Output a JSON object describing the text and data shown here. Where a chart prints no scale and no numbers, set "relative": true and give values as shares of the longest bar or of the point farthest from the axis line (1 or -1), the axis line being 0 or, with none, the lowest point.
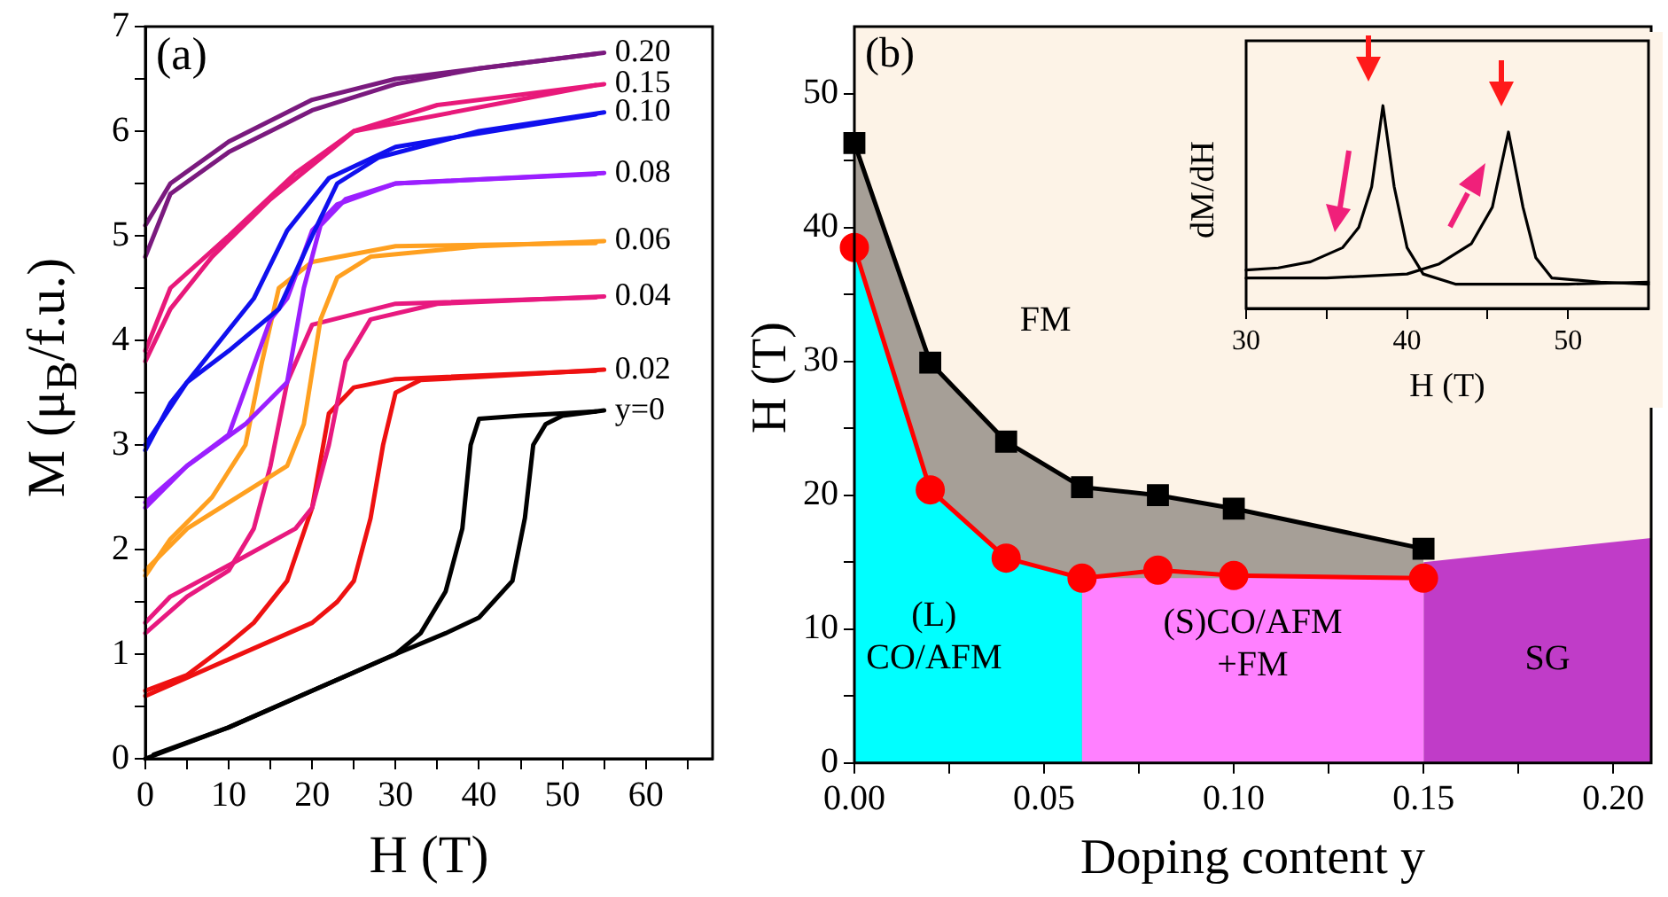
{
  "chart_data": [
    {
      "type": "line",
      "xlabel": "H (T)",
      "ylabel": "M (μ$_{B}$/f.u.)",
      "annotations": [
        "(a)"
      ],
      "xlim": [
        0,
        68
      ],
      "ylim": [
        0,
        7
      ],
      "xticks": [
        0,
        {
          "value": 5,
          "label": null
        },
        10,
        {
          "value": 15,
          "label": null
        },
        20,
        {
          "value": 25,
          "label": null
        },
        30,
        {
          "value": 35,
          "label": null
        },
        40,
        {
          "value": 45,
          "label": null
        },
        50,
        {
          "value": 55,
          "label": null
        },
        60,
        {
          "value": 65,
          "label": null
        }
      ],
      "yticks": [
        0,
        {
          "value": 0.5,
          "label": null
        },
        1,
        {
          "value": 1.5,
          "label": null
        },
        2,
        {
          "value": 2.5,
          "label": null
        },
        3,
        {
          "value": 3.5,
          "label": null
        },
        4,
        {
          "value": 4.5,
          "label": null
        },
        5,
        {
          "value": 5.5,
          "label": null
        },
        6,
        {
          "value": 6.5,
          "label": null
        },
        7
      ],
      "series": [
        {
          "name": "y=0",
          "color": "#000000",
          "x": [
            0,
            10,
            20,
            30,
            36,
            40,
            44,
            45.5,
            46.5,
            48,
            50,
            55
          ],
          "values": [
            0,
            0.3,
            0.65,
            1.0,
            1.2,
            1.35,
            1.7,
            2.3,
            3.0,
            3.2,
            3.28,
            3.33
          ]
        },
        {
          "color": "#000000",
          "x": [
            54,
            45,
            40,
            39,
            38,
            36,
            33,
            30,
            20,
            10,
            1
          ],
          "values": [
            3.32,
            3.28,
            3.25,
            3.0,
            2.2,
            1.6,
            1.2,
            1.0,
            0.65,
            0.3,
            0.04
          ]
        },
        {
          "name": "0.02",
          "color": "#ee1111",
          "x": [
            0,
            10,
            20,
            23,
            25,
            27,
            28.5,
            30,
            33,
            40,
            55
          ],
          "values": [
            0.6,
            0.95,
            1.3,
            1.5,
            1.7,
            2.3,
            3.0,
            3.5,
            3.62,
            3.65,
            3.72
          ]
        },
        {
          "color": "#ee1111",
          "x": [
            54,
            30,
            25,
            22,
            20,
            17,
            13,
            10,
            5,
            0
          ],
          "values": [
            3.71,
            3.63,
            3.55,
            3.3,
            2.4,
            1.7,
            1.3,
            1.1,
            0.8,
            0.65
          ]
        },
        {
          "name": "0.04",
          "color": "#e8197f",
          "x": [
            0,
            3,
            10,
            18,
            20,
            22,
            24,
            27,
            35,
            55
          ],
          "values": [
            1.3,
            1.55,
            1.85,
            2.2,
            2.4,
            3.0,
            3.8,
            4.2,
            4.35,
            4.42
          ]
        },
        {
          "color": "#e8197f",
          "x": [
            54,
            30,
            20,
            17,
            15,
            13,
            10,
            5,
            0
          ],
          "values": [
            4.41,
            4.35,
            4.15,
            3.6,
            2.8,
            2.2,
            1.8,
            1.55,
            1.2
          ]
        },
        {
          "name": "0.06",
          "color": "#ffa020",
          "x": [
            0,
            5,
            12,
            17,
            19,
            21,
            23,
            27,
            40,
            55
          ],
          "values": [
            1.8,
            2.2,
            2.55,
            2.8,
            3.2,
            4.2,
            4.6,
            4.8,
            4.9,
            4.95
          ]
        },
        {
          "color": "#ffa020",
          "x": [
            54,
            30,
            20,
            16,
            14,
            12,
            8,
            3,
            0
          ],
          "values": [
            4.93,
            4.9,
            4.75,
            4.5,
            3.8,
            3.0,
            2.5,
            2.1,
            1.75
          ]
        },
        {
          "name": "0.08",
          "color": "#9b1fff",
          "x": [
            0,
            5,
            12,
            17,
            19,
            21,
            24,
            30,
            55
          ],
          "values": [
            2.4,
            2.8,
            3.2,
            3.6,
            4.5,
            5.1,
            5.35,
            5.5,
            5.6
          ]
        },
        {
          "color": "#9b1fff",
          "x": [
            54,
            30,
            23,
            20,
            17,
            15,
            10,
            5,
            0
          ],
          "values": [
            5.59,
            5.5,
            5.3,
            5.05,
            4.4,
            4.2,
            3.1,
            2.8,
            2.45
          ]
        },
        {
          "name": "0.10",
          "color": "#1010ee",
          "x": [
            0,
            5,
            10,
            16,
            20,
            23,
            28,
            40,
            55
          ],
          "values": [
            3.0,
            3.6,
            3.9,
            4.3,
            5.0,
            5.5,
            5.75,
            6.0,
            6.18
          ]
        },
        {
          "color": "#1010ee",
          "x": [
            54,
            30,
            22,
            17,
            13,
            8,
            3,
            0
          ],
          "values": [
            6.16,
            5.85,
            5.55,
            5.05,
            4.4,
            3.9,
            3.4,
            2.95
          ]
        },
        {
          "name": "0.15",
          "color": "#e8197a",
          "x": [
            0,
            3,
            10,
            18,
            25,
            35,
            55
          ],
          "values": [
            3.9,
            4.5,
            5.0,
            5.6,
            6.0,
            6.25,
            6.45
          ]
        },
        {
          "color": "#e8197a",
          "x": [
            54,
            25,
            15,
            8,
            3,
            0
          ],
          "values": [
            6.44,
            6.0,
            5.35,
            4.8,
            4.3,
            3.8
          ]
        },
        {
          "name": "0.20",
          "color": "#7a1a7e",
          "x": [
            0,
            3,
            10,
            20,
            30,
            40,
            55
          ],
          "values": [
            4.8,
            5.4,
            5.8,
            6.2,
            6.45,
            6.6,
            6.75
          ]
        },
        {
          "color": "#7a1a7e",
          "x": [
            54,
            30,
            20,
            10,
            3,
            0
          ],
          "values": [
            6.74,
            6.5,
            6.3,
            5.9,
            5.5,
            5.1
          ]
        }
      ]
    },
    {
      "type": "line",
      "xlabel": "Doping content y",
      "ylabel": "H (T)",
      "annotations": [
        "(b)",
        "FM",
        "(L)\nCO/AFM",
        "(S)CO/AFM\n+FM",
        "SG"
      ],
      "xlim": [
        0,
        0.21
      ],
      "ylim": [
        0,
        55
      ],
      "xticks": [
        {
          "value": 0,
          "label": "0.00"
        },
        {
          "value": 0.025,
          "label": null
        },
        {
          "value": 0.05,
          "label": "0.05"
        },
        {
          "value": 0.075,
          "label": null
        },
        {
          "value": 0.1,
          "label": "0.10"
        },
        {
          "value": 0.125,
          "label": null
        },
        {
          "value": 0.15,
          "label": "0.15"
        },
        {
          "value": 0.175,
          "label": null
        },
        {
          "value": 0.2,
          "label": "0.20"
        }
      ],
      "yticks": [
        0,
        {
          "value": 5,
          "label": null
        },
        10,
        {
          "value": 15,
          "label": null
        },
        20,
        {
          "value": 25,
          "label": null
        },
        30,
        {
          "value": 35,
          "label": null
        },
        40,
        {
          "value": 45,
          "label": null
        },
        50
      ],
      "bands": [
        {
          "axis": "x",
          "from": 0,
          "to": 0.21,
          "color": "#fdf3e7"
        }
      ],
      "series": [
        {
          "type": "area",
          "color": "#000000",
          "marker": "square",
          "x": [
            0,
            0.02,
            0.04,
            0.06,
            0.08,
            0.1,
            0.15
          ],
          "values": [
            46.3,
            29.9,
            24,
            20.6,
            20,
            19,
            16
          ]
        },
        {
          "type": "area",
          "color": "#00ffff",
          "x": [
            0,
            0.02,
            0.04,
            0.06
          ],
          "values": [
            38.5,
            20.4,
            15.3,
            13.8
          ]
        },
        {
          "type": "area",
          "color": "#ff80ff",
          "x": [
            0.06,
            0.15
          ],
          "values": [
            13.8,
            13.8
          ]
        },
        {
          "type": "area",
          "color": "#c03cc8",
          "x": [
            0.15,
            0.21
          ],
          "values": [
            15,
            16.8
          ]
        },
        {
          "color": "#ff0000",
          "marker": "circle",
          "x": [
            0,
            0.02,
            0.04,
            0.06,
            0.08,
            0.1,
            0.15
          ],
          "values": [
            38.5,
            20.4,
            15.3,
            13.8,
            14.4,
            14.0,
            13.8
          ]
        }
      ]
    },
    {
      "type": "line",
      "relative": true,
      "xlabel": "H (T)",
      "ylabel": "dM/dH",
      "xlim": [
        30,
        55
      ],
      "xticks": [
        30,
        {
          "value": 35,
          "label": null
        },
        40,
        {
          "value": 45,
          "label": null
        },
        50
      ],
      "series": [
        {
          "color": "#000000",
          "x": [
            30,
            32,
            34,
            36,
            37,
            37.8,
            38.5,
            39.2,
            40,
            41,
            43,
            46,
            50,
            55
          ],
          "values": [
            0.19,
            0.2,
            0.23,
            0.3,
            0.4,
            0.6,
            1.0,
            0.6,
            0.3,
            0.17,
            0.12,
            0.12,
            0.12,
            0.13
          ]
        },
        {
          "color": "#000000",
          "x": [
            30,
            35,
            40,
            42,
            44,
            45.3,
            46.3,
            47.2,
            48,
            49,
            52,
            55
          ],
          "values": [
            0.15,
            0.15,
            0.17,
            0.22,
            0.32,
            0.5,
            0.87,
            0.5,
            0.25,
            0.15,
            0.13,
            0.12
          ]
        }
      ]
    }
  ]
}
